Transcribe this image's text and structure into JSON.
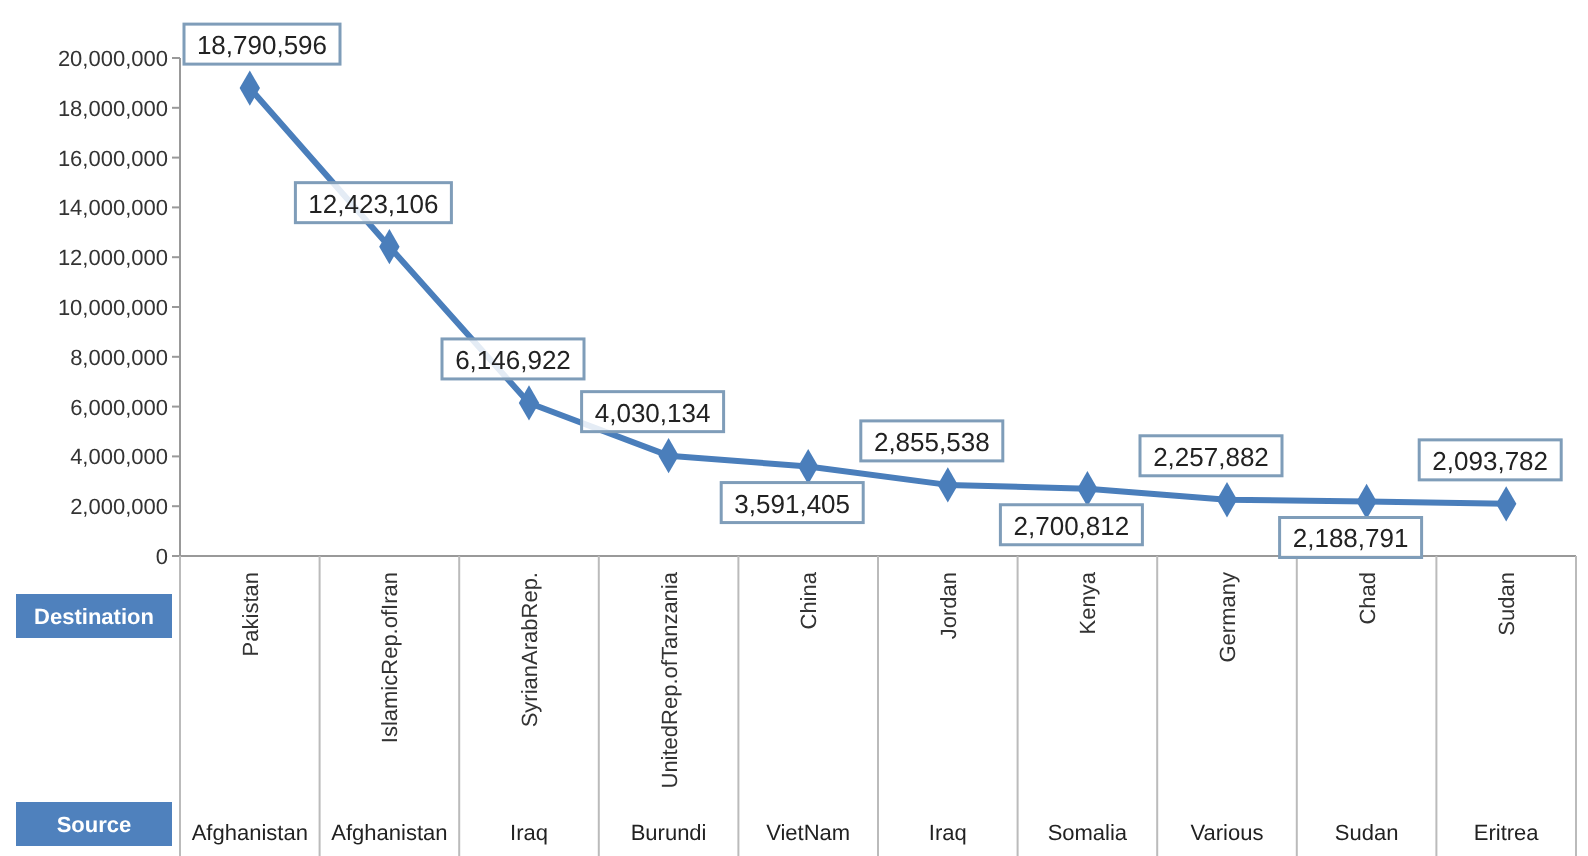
{
  "chart_data": {
    "type": "line",
    "categories": [
      "Pakistan",
      "IslamicRep.ofIran",
      "SyrianArabRep.",
      "UnitedRep.ofTanzania",
      "China",
      "Jordan",
      "Kenya",
      "Germany",
      "Chad",
      "Sudan"
    ],
    "series": [
      {
        "color": "#4a7ebb",
        "values": [
          18790596,
          12423106,
          6146922,
          4030134,
          3591405,
          2855538,
          2700812,
          2257882,
          2188791,
          2093782
        ],
        "value_labels": [
          "18,790,596",
          "12,423,106",
          "6,146,922",
          "4,030,134",
          "3,591,405",
          "2,855,538",
          "2,700,812",
          "2,257,882",
          "2,188,791",
          "2,093,782"
        ]
      }
    ],
    "ylim": [
      0,
      20000000
    ],
    "yticks": [
      {
        "value": 0,
        "label": "0"
      },
      {
        "value": 2000000,
        "label": "2,000,000"
      },
      {
        "value": 4000000,
        "label": "4,000,000"
      },
      {
        "value": 6000000,
        "label": "6,000,000"
      },
      {
        "value": 8000000,
        "label": "8,000,000"
      },
      {
        "value": 10000000,
        "label": "10,000,000"
      },
      {
        "value": 12000000,
        "label": "12,000,000"
      },
      {
        "value": 14000000,
        "label": "14,000,000"
      },
      {
        "value": 16000000,
        "label": "16,000,000"
      },
      {
        "value": 18000000,
        "label": "18,000,000"
      },
      {
        "value": 20000000,
        "label": "20,000,000"
      }
    ],
    "marker": "diamond",
    "grid": false,
    "annotations": [
      "Destination",
      "Source",
      "Afghanistan",
      "Afghanistan",
      "Iraq",
      "Burundi",
      "VietNam",
      "Iraq",
      "Somalia",
      "Various",
      "Sudan",
      "Eritrea"
    ]
  }
}
